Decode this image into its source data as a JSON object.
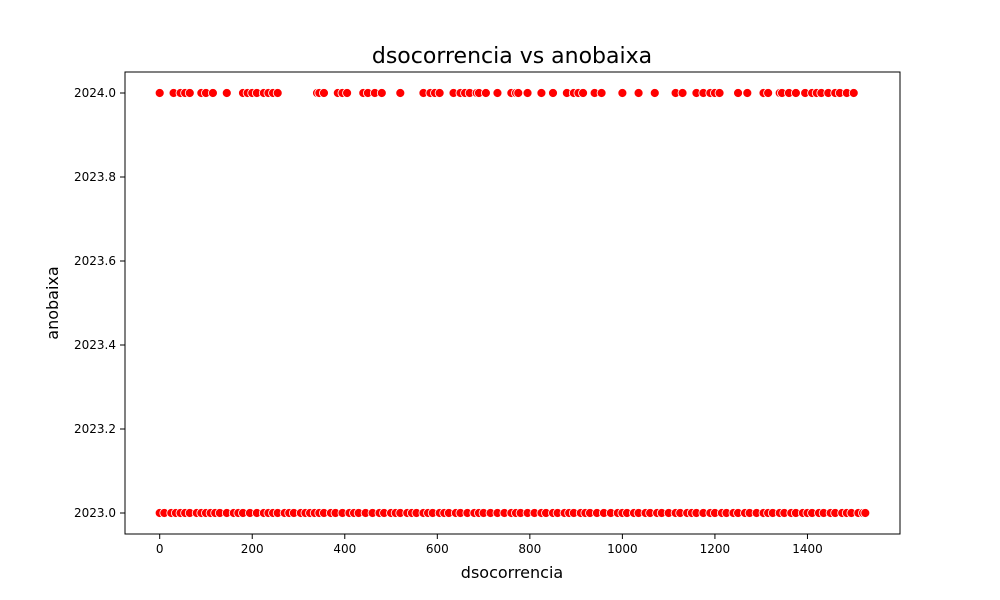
{
  "chart_data": {
    "type": "scatter",
    "title": "dsocorrencia vs anobaixa",
    "xlabel": "dsocorrencia",
    "ylabel": "anobaixa",
    "xlim": [
      -75,
      1600
    ],
    "ylim": [
      2022.95,
      2024.05
    ],
    "x_ticks": [
      0,
      200,
      400,
      600,
      800,
      1000,
      1200,
      1400
    ],
    "y_ticks": [
      2023.0,
      2023.2,
      2023.4,
      2023.6,
      2023.8,
      2024.0
    ],
    "y_tick_labels": [
      "2023.0",
      "2023.2",
      "2023.4",
      "2023.6",
      "2023.8",
      "2024.0"
    ],
    "grid": false,
    "marker_color": "#ff0000",
    "marker_edge_color": "#ffffff",
    "series": [
      {
        "y": 2024.0,
        "x": [
          0,
          30,
          45,
          55,
          65,
          90,
          100,
          115,
          145,
          180,
          190,
          200,
          210,
          225,
          235,
          245,
          255,
          340,
          345,
          355,
          385,
          395,
          405,
          440,
          450,
          465,
          480,
          520,
          570,
          585,
          595,
          605,
          635,
          650,
          660,
          670,
          685,
          690,
          705,
          730,
          760,
          770,
          775,
          795,
          825,
          850,
          880,
          895,
          905,
          915,
          940,
          955,
          1000,
          1035,
          1070,
          1115,
          1130,
          1160,
          1175,
          1190,
          1200,
          1210,
          1250,
          1270,
          1305,
          1315,
          1340,
          1345,
          1360,
          1375,
          1395,
          1410,
          1420,
          1430,
          1445,
          1460,
          1470,
          1485,
          1500
        ]
      },
      {
        "y": 2023.0,
        "x": [
          0,
          10,
          25,
          35,
          45,
          55,
          65,
          80,
          90,
          100,
          110,
          120,
          130,
          145,
          160,
          170,
          180,
          195,
          210,
          225,
          235,
          245,
          255,
          270,
          280,
          290,
          305,
          315,
          325,
          335,
          345,
          355,
          370,
          380,
          395,
          410,
          420,
          430,
          445,
          460,
          475,
          485,
          500,
          510,
          520,
          535,
          545,
          555,
          570,
          580,
          590,
          605,
          615,
          625,
          640,
          650,
          665,
          680,
          690,
          700,
          715,
          730,
          745,
          760,
          770,
          780,
          795,
          810,
          825,
          835,
          850,
          860,
          875,
          885,
          895,
          910,
          920,
          930,
          945,
          960,
          975,
          990,
          1000,
          1010,
          1025,
          1035,
          1050,
          1060,
          1075,
          1085,
          1100,
          1115,
          1125,
          1140,
          1150,
          1160,
          1175,
          1190,
          1200,
          1215,
          1225,
          1240,
          1250,
          1265,
          1275,
          1290,
          1305,
          1315,
          1325,
          1340,
          1350,
          1365,
          1375,
          1390,
          1400,
          1410,
          1425,
          1435,
          1450,
          1460,
          1475,
          1485,
          1495,
          1510,
          1520,
          1525
        ]
      }
    ]
  }
}
